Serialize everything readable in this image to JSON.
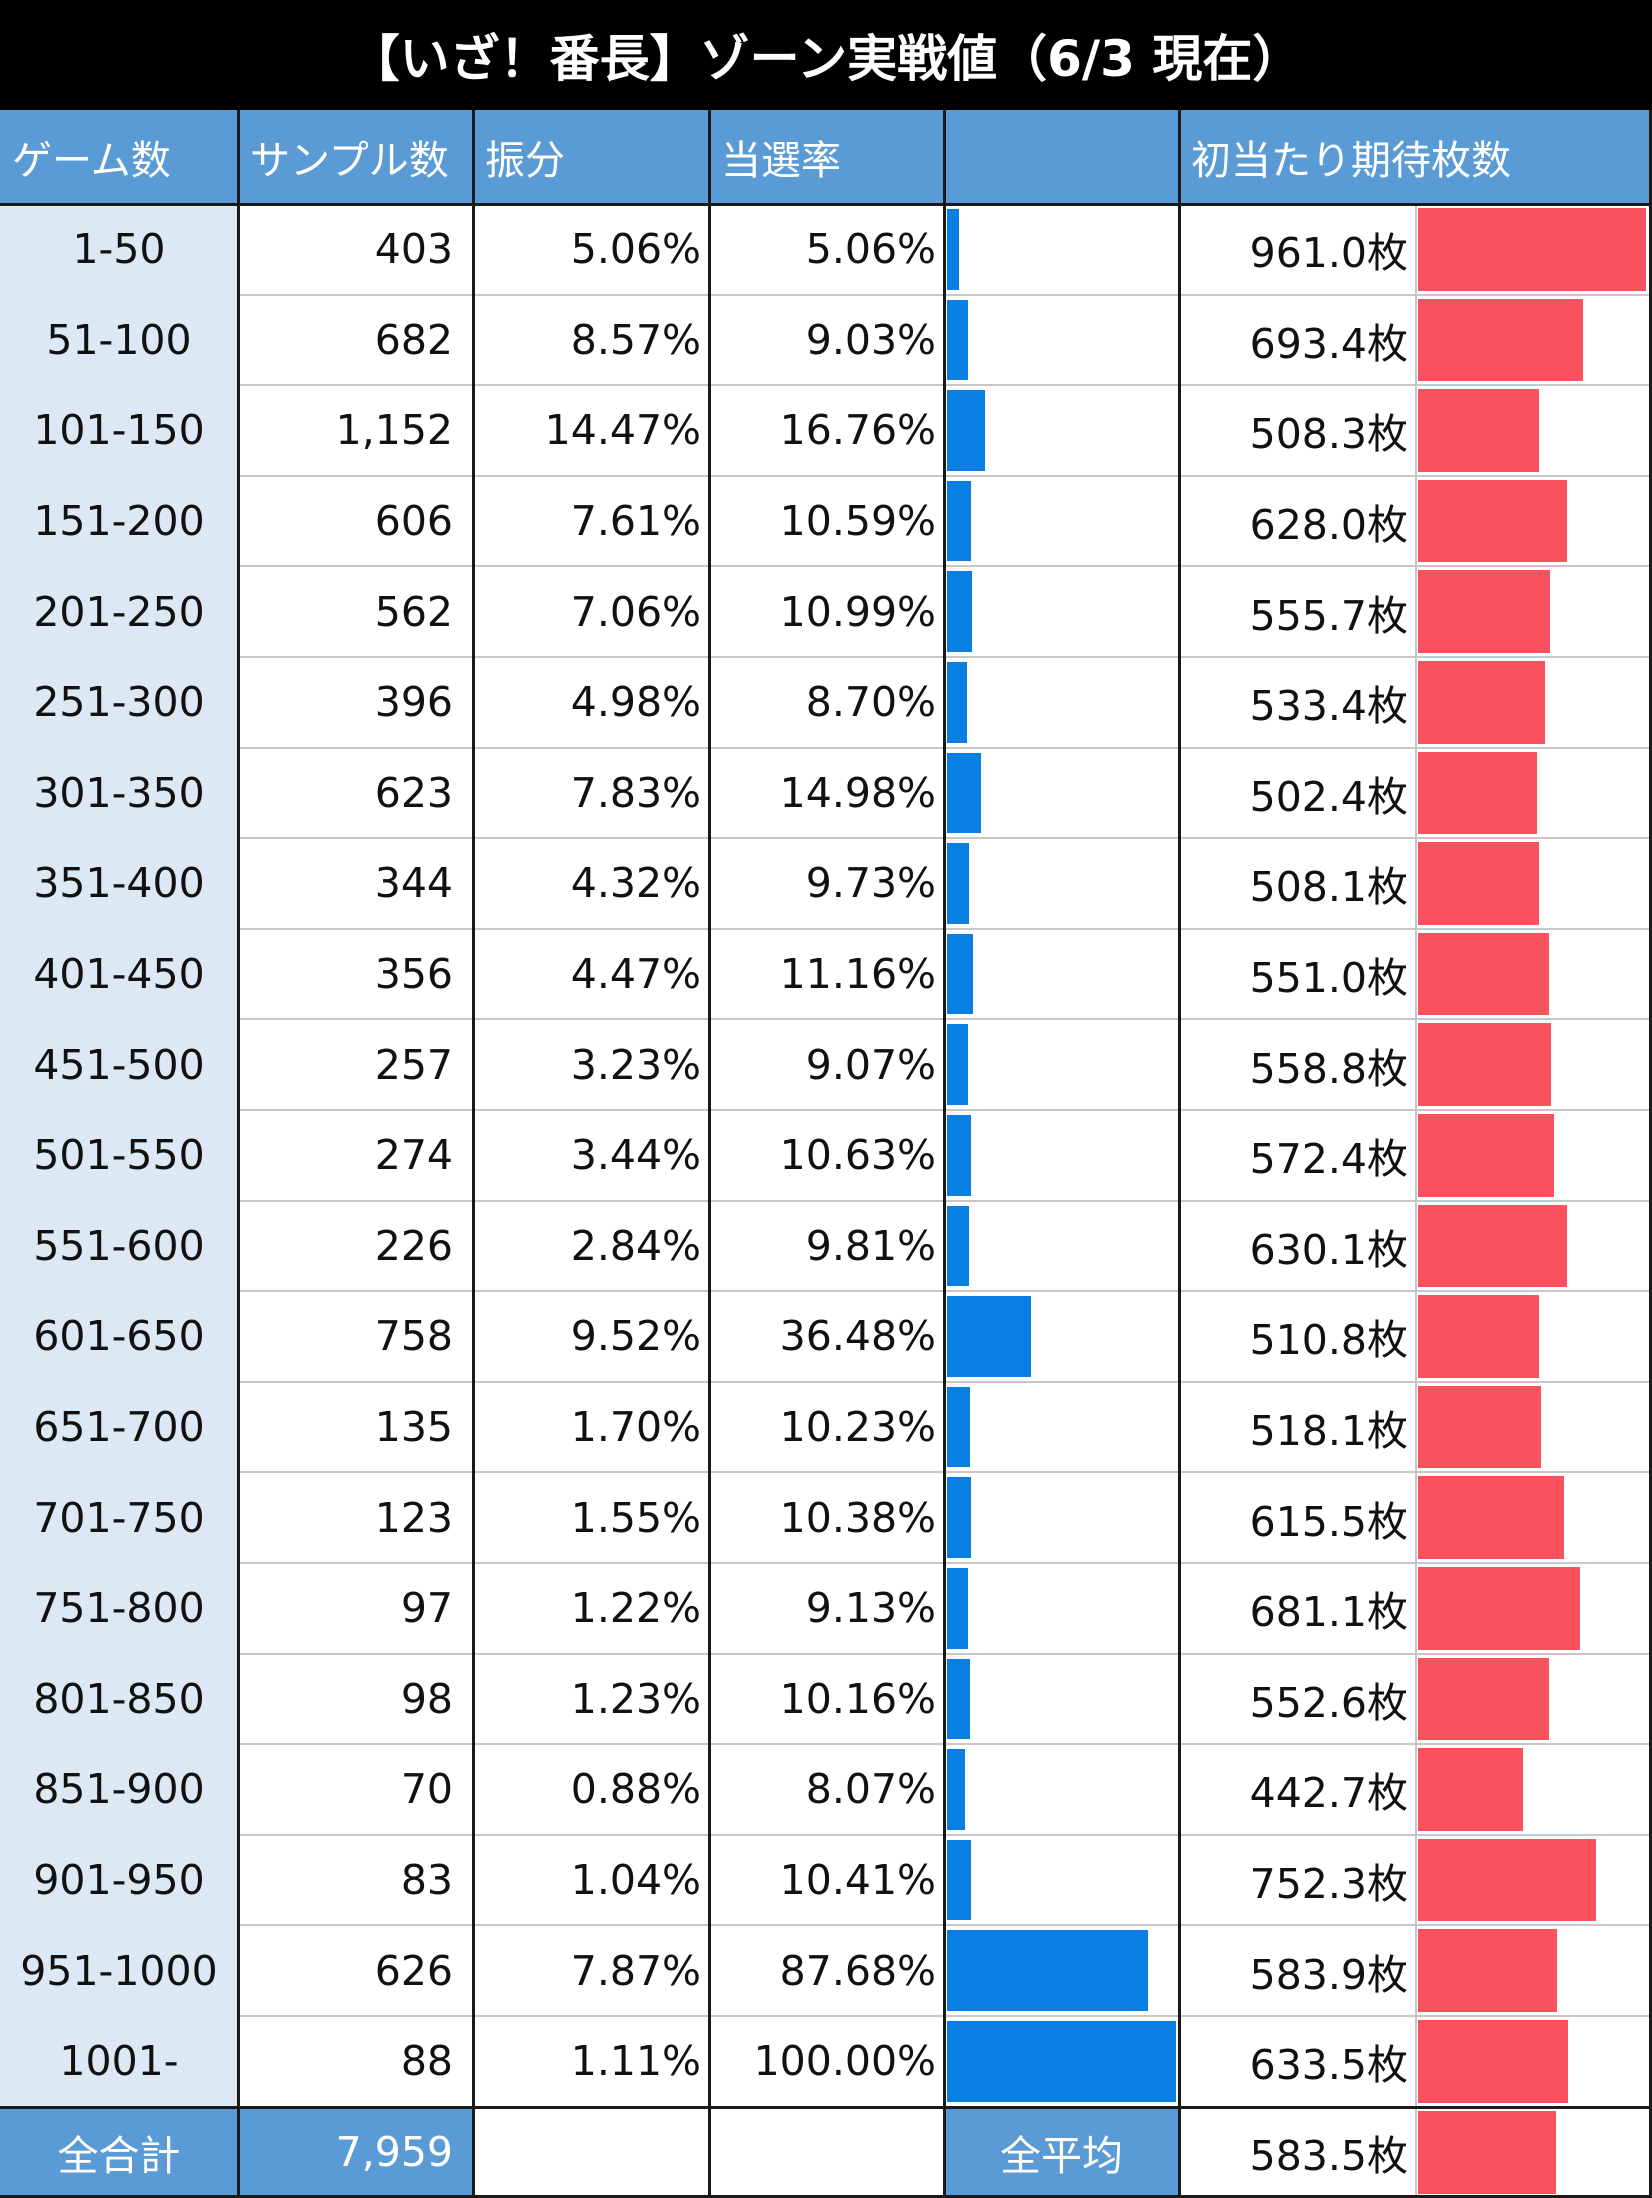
{
  "title": "【いざ！番長】ゾーン実戦値（6/3 現在）",
  "header": {
    "zone": "ゲーム数",
    "samples": "サンプル数",
    "share": "振分",
    "hit_rate": "当選率",
    "hit_bar": "",
    "expected": "初当たり期待枚数",
    "expected_bar": ""
  },
  "colors": {
    "header_bg": "#5b9bd5",
    "zone_bg": "#dce9f5",
    "hit_bar": "#0a7fe3",
    "expected_bar": "#f9525e"
  },
  "footer": {
    "total_label": "全合計",
    "total_samples": "7,959",
    "avg_label": "全平均",
    "avg_expected": "583.5枚",
    "avg_expected_value": 583.5
  },
  "chart_data": {
    "type": "table",
    "columns": [
      "ゲーム数",
      "サンプル数",
      "振分",
      "当選率",
      "初当たり期待枚数"
    ],
    "hit_rate_scale": [
      0,
      100
    ],
    "expected_scale": [
      0,
      961.0
    ],
    "rows": [
      {
        "zone": "1-50",
        "samples": "403",
        "share": "5.06%",
        "hit_rate": "5.06%",
        "hit_value": 5.06,
        "expected": "961.0枚",
        "expected_value": 961.0
      },
      {
        "zone": "51-100",
        "samples": "682",
        "share": "8.57%",
        "hit_rate": "9.03%",
        "hit_value": 9.03,
        "expected": "693.4枚",
        "expected_value": 693.4
      },
      {
        "zone": "101-150",
        "samples": "1,152",
        "share": "14.47%",
        "hit_rate": "16.76%",
        "hit_value": 16.76,
        "expected": "508.3枚",
        "expected_value": 508.3
      },
      {
        "zone": "151-200",
        "samples": "606",
        "share": "7.61%",
        "hit_rate": "10.59%",
        "hit_value": 10.59,
        "expected": "628.0枚",
        "expected_value": 628.0
      },
      {
        "zone": "201-250",
        "samples": "562",
        "share": "7.06%",
        "hit_rate": "10.99%",
        "hit_value": 10.99,
        "expected": "555.7枚",
        "expected_value": 555.7
      },
      {
        "zone": "251-300",
        "samples": "396",
        "share": "4.98%",
        "hit_rate": "8.70%",
        "hit_value": 8.7,
        "expected": "533.4枚",
        "expected_value": 533.4
      },
      {
        "zone": "301-350",
        "samples": "623",
        "share": "7.83%",
        "hit_rate": "14.98%",
        "hit_value": 14.98,
        "expected": "502.4枚",
        "expected_value": 502.4
      },
      {
        "zone": "351-400",
        "samples": "344",
        "share": "4.32%",
        "hit_rate": "9.73%",
        "hit_value": 9.73,
        "expected": "508.1枚",
        "expected_value": 508.1
      },
      {
        "zone": "401-450",
        "samples": "356",
        "share": "4.47%",
        "hit_rate": "11.16%",
        "hit_value": 11.16,
        "expected": "551.0枚",
        "expected_value": 551.0
      },
      {
        "zone": "451-500",
        "samples": "257",
        "share": "3.23%",
        "hit_rate": "9.07%",
        "hit_value": 9.07,
        "expected": "558.8枚",
        "expected_value": 558.8
      },
      {
        "zone": "501-550",
        "samples": "274",
        "share": "3.44%",
        "hit_rate": "10.63%",
        "hit_value": 10.63,
        "expected": "572.4枚",
        "expected_value": 572.4
      },
      {
        "zone": "551-600",
        "samples": "226",
        "share": "2.84%",
        "hit_rate": "9.81%",
        "hit_value": 9.81,
        "expected": "630.1枚",
        "expected_value": 630.1
      },
      {
        "zone": "601-650",
        "samples": "758",
        "share": "9.52%",
        "hit_rate": "36.48%",
        "hit_value": 36.48,
        "expected": "510.8枚",
        "expected_value": 510.8
      },
      {
        "zone": "651-700",
        "samples": "135",
        "share": "1.70%",
        "hit_rate": "10.23%",
        "hit_value": 10.23,
        "expected": "518.1枚",
        "expected_value": 518.1
      },
      {
        "zone": "701-750",
        "samples": "123",
        "share": "1.55%",
        "hit_rate": "10.38%",
        "hit_value": 10.38,
        "expected": "615.5枚",
        "expected_value": 615.5
      },
      {
        "zone": "751-800",
        "samples": "97",
        "share": "1.22%",
        "hit_rate": "9.13%",
        "hit_value": 9.13,
        "expected": "681.1枚",
        "expected_value": 681.1
      },
      {
        "zone": "801-850",
        "samples": "98",
        "share": "1.23%",
        "hit_rate": "10.16%",
        "hit_value": 10.16,
        "expected": "552.6枚",
        "expected_value": 552.6
      },
      {
        "zone": "851-900",
        "samples": "70",
        "share": "0.88%",
        "hit_rate": "8.07%",
        "hit_value": 8.07,
        "expected": "442.7枚",
        "expected_value": 442.7
      },
      {
        "zone": "901-950",
        "samples": "83",
        "share": "1.04%",
        "hit_rate": "10.41%",
        "hit_value": 10.41,
        "expected": "752.3枚",
        "expected_value": 752.3
      },
      {
        "zone": "951-1000",
        "samples": "626",
        "share": "7.87%",
        "hit_rate": "87.68%",
        "hit_value": 87.68,
        "expected": "583.9枚",
        "expected_value": 583.9
      },
      {
        "zone": "1001-",
        "samples": "88",
        "share": "1.11%",
        "hit_rate": "100.00%",
        "hit_value": 100.0,
        "expected": "633.5枚",
        "expected_value": 633.5
      }
    ]
  }
}
